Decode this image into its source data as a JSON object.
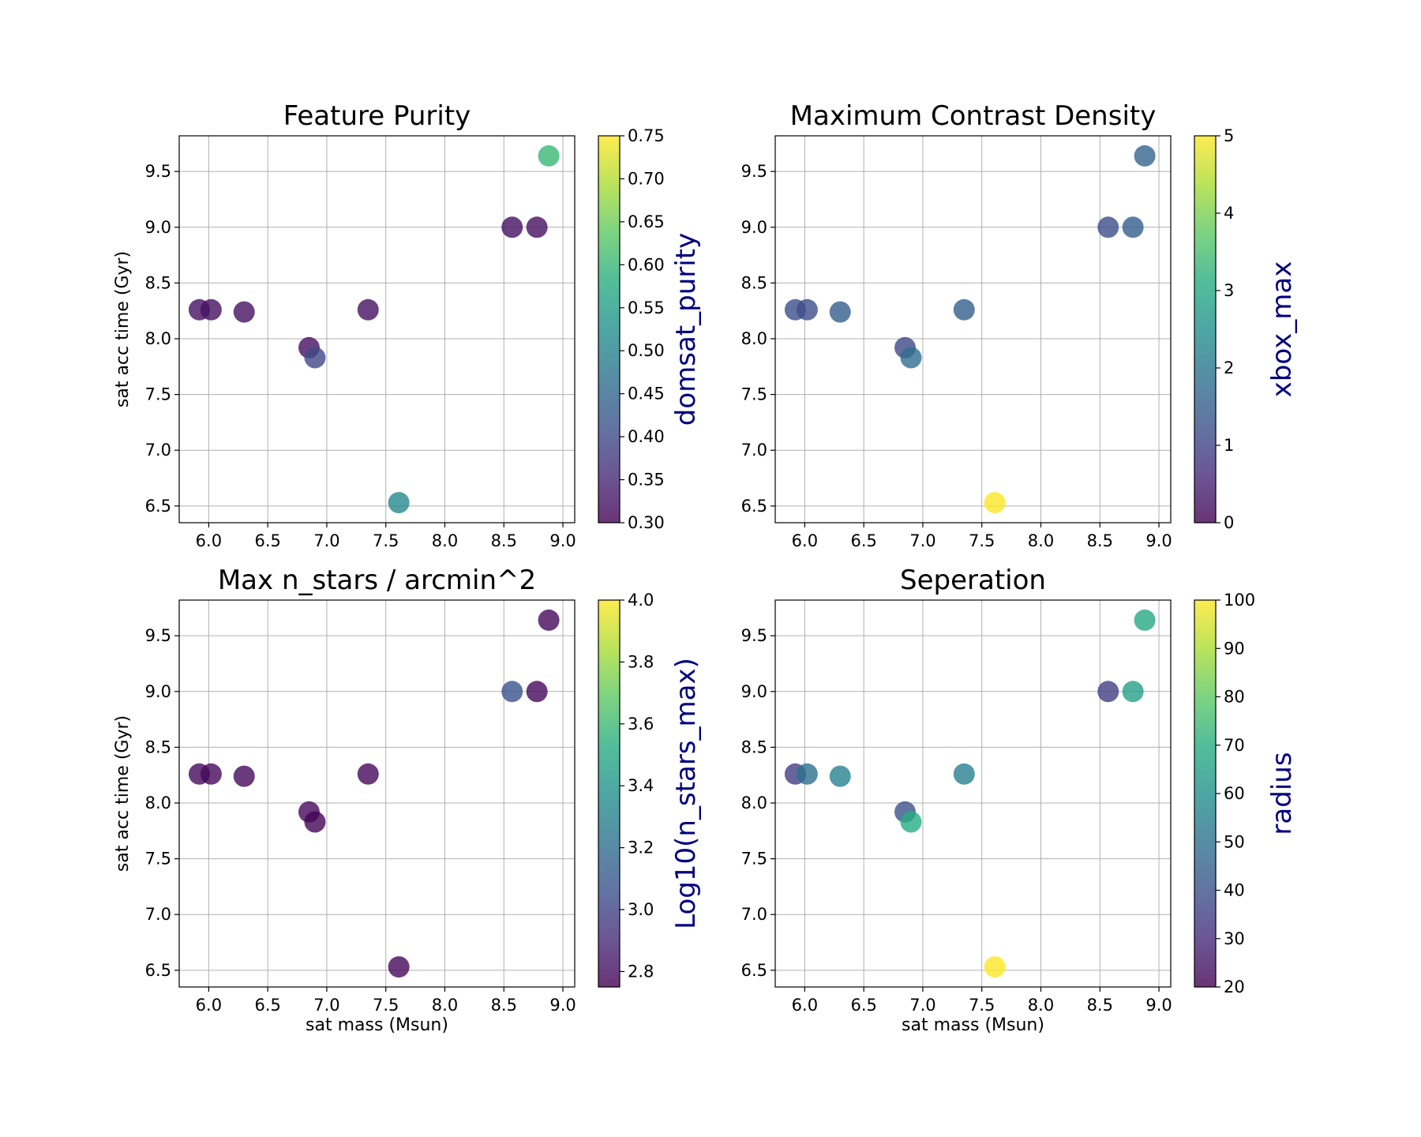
{
  "chart_data": [
    {
      "type": "scatter",
      "title": "Feature Purity",
      "xlabel": "",
      "ylabel": "sat acc time (Gyr)",
      "xlim": [
        5.75,
        9.1
      ],
      "ylim": [
        6.35,
        9.82
      ],
      "xticks": [
        "6.0",
        "6.5",
        "7.0",
        "7.5",
        "8.0",
        "8.5",
        "9.0"
      ],
      "yticks": [
        "6.5",
        "7.0",
        "7.5",
        "8.0",
        "8.5",
        "9.0",
        "9.5"
      ],
      "grid": true,
      "colorbar": {
        "label": "domsat_purity",
        "range": [
          0.3,
          0.75
        ],
        "ticks": [
          "0.30",
          "0.35",
          "0.40",
          "0.45",
          "0.50",
          "0.55",
          "0.60",
          "0.65",
          "0.70",
          "0.75"
        ]
      },
      "points": [
        {
          "x": 5.92,
          "y": 8.26,
          "c": 0.32
        },
        {
          "x": 6.02,
          "y": 8.26,
          "c": 0.32
        },
        {
          "x": 6.3,
          "y": 8.24,
          "c": 0.32
        },
        {
          "x": 6.85,
          "y": 7.92,
          "c": 0.32
        },
        {
          "x": 6.9,
          "y": 7.83,
          "c": 0.4
        },
        {
          "x": 7.35,
          "y": 8.26,
          "c": 0.32
        },
        {
          "x": 7.61,
          "y": 6.53,
          "c": 0.51
        },
        {
          "x": 8.57,
          "y": 9.0,
          "c": 0.32
        },
        {
          "x": 8.78,
          "y": 9.0,
          "c": 0.32
        },
        {
          "x": 8.88,
          "y": 9.64,
          "c": 0.6
        }
      ]
    },
    {
      "type": "scatter",
      "title": "Maximum Contrast Density",
      "xlabel": "",
      "ylabel": "",
      "xlim": [
        5.75,
        9.1
      ],
      "ylim": [
        6.35,
        9.82
      ],
      "xticks": [
        "6.0",
        "6.5",
        "7.0",
        "7.5",
        "8.0",
        "8.5",
        "9.0"
      ],
      "yticks": [
        "6.5",
        "7.0",
        "7.5",
        "8.0",
        "8.5",
        "9.0",
        "9.5"
      ],
      "grid": true,
      "colorbar": {
        "label": "xbox_max",
        "range": [
          0,
          5
        ],
        "ticks": [
          "0",
          "1",
          "2",
          "3",
          "4",
          "5"
        ]
      },
      "points": [
        {
          "x": 5.92,
          "y": 8.26,
          "c": 1.2
        },
        {
          "x": 6.02,
          "y": 8.26,
          "c": 1.2
        },
        {
          "x": 6.3,
          "y": 8.24,
          "c": 1.5
        },
        {
          "x": 6.85,
          "y": 7.92,
          "c": 1.1
        },
        {
          "x": 6.9,
          "y": 7.83,
          "c": 1.8
        },
        {
          "x": 7.35,
          "y": 8.26,
          "c": 1.5
        },
        {
          "x": 7.61,
          "y": 6.53,
          "c": 5.0
        },
        {
          "x": 8.57,
          "y": 9.0,
          "c": 1.2
        },
        {
          "x": 8.78,
          "y": 9.0,
          "c": 1.5
        },
        {
          "x": 8.88,
          "y": 9.64,
          "c": 1.6
        }
      ]
    },
    {
      "type": "scatter",
      "title": "Max n_stars / arcmin^2",
      "xlabel": "sat mass (Msun)",
      "ylabel": "sat acc time (Gyr)",
      "xlim": [
        5.75,
        9.1
      ],
      "ylim": [
        6.35,
        9.82
      ],
      "xticks": [
        "6.0",
        "6.5",
        "7.0",
        "7.5",
        "8.0",
        "8.5",
        "9.0"
      ],
      "yticks": [
        "6.5",
        "7.0",
        "7.5",
        "8.0",
        "8.5",
        "9.0",
        "9.5"
      ],
      "grid": true,
      "colorbar": {
        "label": "Log10(n_stars_max)",
        "range": [
          2.75,
          4.0
        ],
        "ticks": [
          "2.8",
          "3.0",
          "3.2",
          "3.4",
          "3.6",
          "3.8",
          "4.0"
        ]
      },
      "points": [
        {
          "x": 5.92,
          "y": 8.26,
          "c": 2.78
        },
        {
          "x": 6.02,
          "y": 8.26,
          "c": 2.78
        },
        {
          "x": 6.3,
          "y": 8.24,
          "c": 2.78
        },
        {
          "x": 6.85,
          "y": 7.92,
          "c": 2.78
        },
        {
          "x": 6.9,
          "y": 7.83,
          "c": 2.76
        },
        {
          "x": 7.35,
          "y": 8.26,
          "c": 2.78
        },
        {
          "x": 7.61,
          "y": 6.53,
          "c": 2.78
        },
        {
          "x": 8.57,
          "y": 9.0,
          "c": 3.07
        },
        {
          "x": 8.78,
          "y": 9.0,
          "c": 2.78
        },
        {
          "x": 8.88,
          "y": 9.64,
          "c": 2.78
        }
      ]
    },
    {
      "type": "scatter",
      "title": "Seperation",
      "xlabel": "sat mass (Msun)",
      "ylabel": "",
      "xlim": [
        5.75,
        9.1
      ],
      "ylim": [
        6.35,
        9.82
      ],
      "xticks": [
        "6.0",
        "6.5",
        "7.0",
        "7.5",
        "8.0",
        "8.5",
        "9.0"
      ],
      "yticks": [
        "6.5",
        "7.0",
        "7.5",
        "8.0",
        "8.5",
        "9.0",
        "9.5"
      ],
      "grid": true,
      "colorbar": {
        "label": "radius",
        "range": [
          20,
          100
        ],
        "ticks": [
          "20",
          "30",
          "40",
          "50",
          "60",
          "70",
          "80",
          "90",
          "100"
        ]
      },
      "points": [
        {
          "x": 5.92,
          "y": 8.26,
          "c": 35
        },
        {
          "x": 6.02,
          "y": 8.26,
          "c": 50
        },
        {
          "x": 6.3,
          "y": 8.24,
          "c": 55
        },
        {
          "x": 6.85,
          "y": 7.92,
          "c": 40
        },
        {
          "x": 6.9,
          "y": 7.83,
          "c": 70
        },
        {
          "x": 7.35,
          "y": 8.26,
          "c": 55
        },
        {
          "x": 7.61,
          "y": 6.53,
          "c": 100
        },
        {
          "x": 8.57,
          "y": 9.0,
          "c": 35
        },
        {
          "x": 8.78,
          "y": 9.0,
          "c": 65
        },
        {
          "x": 8.88,
          "y": 9.64,
          "c": 68
        }
      ]
    }
  ]
}
